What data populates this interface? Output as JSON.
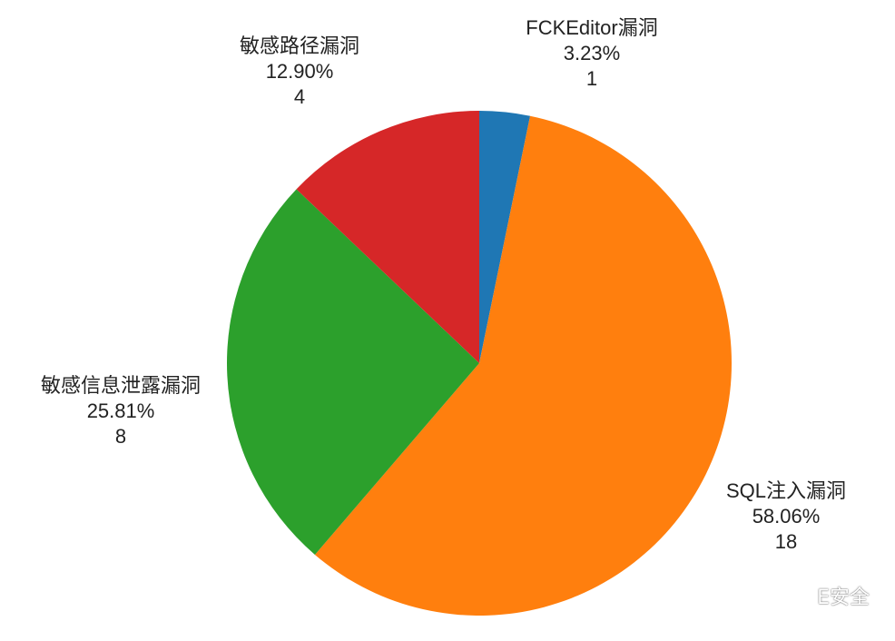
{
  "chart_data": {
    "type": "pie",
    "start_angle_deg": 0,
    "direction": "clockwise",
    "slices": [
      {
        "label": "FCKEditor漏洞",
        "percent_text": "3.23%",
        "percent": 3.23,
        "count": 1,
        "count_text": "1",
        "color": "#1f77b4"
      },
      {
        "label": "SQL注入漏洞",
        "percent_text": "58.06%",
        "percent": 58.06,
        "count": 18,
        "count_text": "18",
        "color": "#ff7f0e"
      },
      {
        "label": "敏感信息泄露漏洞",
        "percent_text": "25.81%",
        "percent": 25.81,
        "count": 8,
        "count_text": "8",
        "color": "#2ca02c"
      },
      {
        "label": "敏感路径漏洞",
        "percent_text": "12.90%",
        "percent": 12.9,
        "count": 4,
        "count_text": "4",
        "color": "#d62728"
      }
    ]
  },
  "watermark": {
    "text": "E安全",
    "icon": "wechat-icon"
  }
}
